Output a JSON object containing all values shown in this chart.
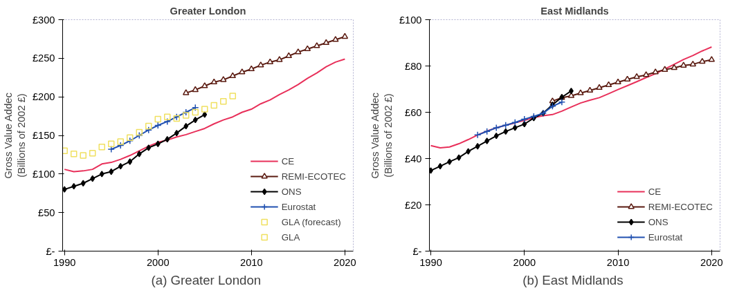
{
  "chart_data": [
    {
      "type": "line",
      "title": "Greater London",
      "ylabel": "Gross Value Addec\n(Billions of 2002 £)",
      "annotations": [
        "(a)  Greater London"
      ],
      "xlim": [
        1989.8,
        2020.9
      ],
      "xticks": [
        1990,
        2000,
        2010,
        2020
      ],
      "ylim": [
        0,
        300
      ],
      "yticks": [
        {
          "value": 0,
          "label": "£-"
        },
        {
          "value": 50,
          "label": "£50"
        },
        {
          "value": 100,
          "label": "£100"
        },
        {
          "value": 150,
          "label": "£150"
        },
        {
          "value": 200,
          "label": "£200"
        },
        {
          "value": 250,
          "label": "£250"
        },
        {
          "value": 300,
          "label": "£300"
        }
      ],
      "grid": false,
      "legend": "bottom right",
      "series": [
        {
          "name": "CE",
          "color": "#e8305a",
          "marker": "none",
          "x": [
            1990,
            1991,
            1992,
            1993,
            1994,
            1995,
            1996,
            1997,
            1998,
            1999,
            2000,
            2001,
            2002,
            2003,
            2004,
            2005,
            2006,
            2007,
            2008,
            2009,
            2010,
            2011,
            2012,
            2013,
            2014,
            2015,
            2016,
            2017,
            2018,
            2019,
            2020
          ],
          "values": [
            106,
            103,
            104,
            106,
            113,
            115,
            119,
            124,
            130,
            136,
            141,
            144,
            148,
            151,
            155,
            159,
            165,
            170,
            174,
            180,
            184,
            191,
            196,
            203,
            209,
            216,
            224,
            231,
            239,
            245,
            249
          ]
        },
        {
          "name": "REMI-ECOTEC",
          "color": "#5a1a10",
          "marker": "triangle",
          "x": [
            2003,
            2004,
            2005,
            2006,
            2007,
            2008,
            2009,
            2010,
            2011,
            2012,
            2013,
            2014,
            2015,
            2016,
            2017,
            2018,
            2019,
            2020
          ],
          "values": [
            205,
            209,
            214,
            219,
            222,
            227,
            232,
            236,
            241,
            245,
            248,
            253,
            258,
            262,
            266,
            270,
            274,
            278
          ]
        },
        {
          "name": "ONS",
          "color": "#000000",
          "marker": "diamond",
          "x": [
            1990,
            1991,
            1992,
            1993,
            1994,
            1995,
            1996,
            1997,
            1998,
            1999,
            2000,
            2001,
            2002,
            2003,
            2004,
            2005
          ],
          "values": [
            80,
            84,
            88,
            94,
            100,
            103,
            110,
            116,
            126,
            134,
            139,
            145,
            153,
            162,
            170,
            177
          ]
        },
        {
          "name": "Eurostat",
          "color": "#2050b0",
          "marker": "cross",
          "x": [
            1995,
            1996,
            1997,
            1998,
            1999,
            2000,
            2001,
            2002,
            2003,
            2004
          ],
          "values": [
            132,
            137,
            143,
            150,
            157,
            163,
            168,
            174,
            180,
            186
          ]
        },
        {
          "name": "GLA (forecast)",
          "type": "scatter",
          "color": "#f0e060",
          "marker": "square",
          "x": [
            2005,
            2006,
            2007,
            2008
          ],
          "values": [
            184,
            189,
            194,
            201
          ]
        },
        {
          "name": "GLA",
          "type": "scatter",
          "color": "#f0e060",
          "marker": "square",
          "x": [
            1990,
            1991,
            1992,
            1993,
            1994,
            1995,
            1996,
            1997,
            1998,
            1999,
            2000,
            2001,
            2002,
            2003,
            2004
          ],
          "values": [
            130,
            126,
            124,
            127,
            135,
            139,
            142,
            147,
            154,
            162,
            171,
            174,
            172,
            176,
            180
          ]
        }
      ]
    },
    {
      "type": "line",
      "title": "East Midlands",
      "ylabel": "Gross Value Addec\n(Billions of 2002 £)",
      "annotations": [
        "(b)  East Midlands"
      ],
      "xlim": [
        1989.85,
        2020.9
      ],
      "xticks": [
        1990,
        2000,
        2010,
        2020
      ],
      "ylim": [
        0,
        100
      ],
      "yticks": [
        {
          "value": 0,
          "label": "£-"
        },
        {
          "value": 20,
          "label": "£20"
        },
        {
          "value": 40,
          "label": "£40"
        },
        {
          "value": 60,
          "label": "£60"
        },
        {
          "value": 80,
          "label": "£80"
        },
        {
          "value": 100,
          "label": "£100"
        }
      ],
      "grid": false,
      "legend": "bottom right",
      "series": [
        {
          "name": "CE",
          "color": "#e8305a",
          "marker": "none",
          "x": [
            1990,
            1991,
            1992,
            1993,
            1994,
            1995,
            1996,
            1997,
            1998,
            1999,
            2000,
            2001,
            2002,
            2003,
            2004,
            2005,
            2006,
            2007,
            2008,
            2009,
            2010,
            2011,
            2012,
            2013,
            2014,
            2015,
            2016,
            2017,
            2018,
            2019,
            2020
          ],
          "values": [
            45.6,
            44.6,
            45,
            46.4,
            48.2,
            50.2,
            51.9,
            53.3,
            54.4,
            55.4,
            56.5,
            57.7,
            58.5,
            59,
            60.5,
            62.3,
            64,
            65.2,
            66.3,
            68,
            69.8,
            71.5,
            73.2,
            75,
            76.7,
            78.7,
            80.7,
            82.8,
            84.5,
            86.5,
            88.2
          ]
        },
        {
          "name": "REMI-ECOTEC",
          "color": "#5a1a10",
          "marker": "triangle",
          "x": [
            2003,
            2004,
            2005,
            2006,
            2007,
            2008,
            2009,
            2010,
            2011,
            2012,
            2013,
            2014,
            2015,
            2016,
            2017,
            2018,
            2019,
            2020
          ],
          "values": [
            64.8,
            66.3,
            67.1,
            68.3,
            69.4,
            70.6,
            71.8,
            73,
            74.2,
            75.3,
            76.1,
            77.3,
            78.4,
            79.2,
            80.2,
            80.7,
            81.9,
            82.7
          ]
        },
        {
          "name": "ONS",
          "color": "#000000",
          "marker": "diamond",
          "x": [
            1990,
            1991,
            1992,
            1993,
            1994,
            1995,
            1996,
            1997,
            1998,
            1999,
            2000,
            2001,
            2002,
            2003,
            2004,
            2005
          ],
          "values": [
            34.8,
            36.7,
            38.6,
            40.4,
            43.1,
            45.3,
            47.6,
            49.8,
            51.7,
            53.3,
            54.9,
            57.5,
            59.6,
            63.2,
            66.5,
            69.2
          ]
        },
        {
          "name": "Eurostat",
          "color": "#2050b0",
          "marker": "cross",
          "x": [
            1995,
            1996,
            1997,
            1998,
            1999,
            2000,
            2001,
            2002,
            2003,
            2004
          ],
          "values": [
            50.2,
            51.7,
            53.3,
            54.4,
            55.6,
            57,
            58.2,
            59.6,
            62.6,
            64.4
          ]
        }
      ]
    }
  ]
}
